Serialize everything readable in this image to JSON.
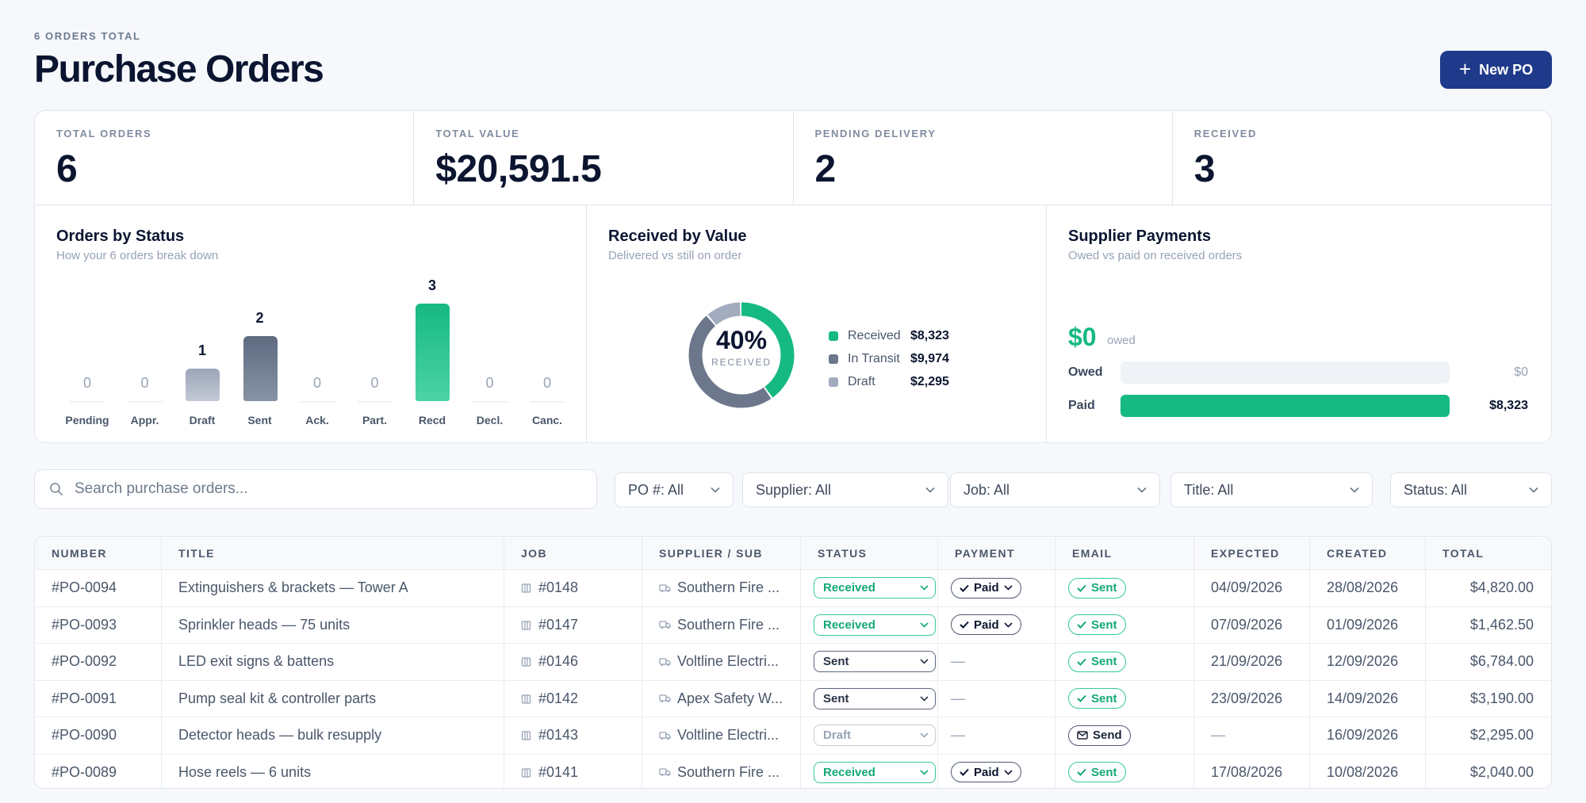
{
  "header": {
    "pre": "6 ORDERS TOTAL",
    "title": "Purchase Orders",
    "new_po": "New PO"
  },
  "stats": [
    {
      "label": "TOTAL ORDERS",
      "value": "6"
    },
    {
      "label": "TOTAL VALUE",
      "value": "$20,591.5"
    },
    {
      "label": "PENDING DELIVERY",
      "value": "2"
    },
    {
      "label": "RECEIVED",
      "value": "3"
    }
  ],
  "status_card": {
    "title": "Orders by Status",
    "subtitle": "How your 6 orders break down"
  },
  "value_card": {
    "title": "Received by Value",
    "subtitle": "Delivered vs still on order",
    "center_pct": "40%",
    "center_label": "RECEIVED",
    "legend": [
      {
        "name": "Received",
        "amount": "$8,323"
      },
      {
        "name": "In Transit",
        "amount": "$9,974"
      },
      {
        "name": "Draft",
        "amount": "$2,295"
      }
    ]
  },
  "payments_card": {
    "title": "Supplier Payments",
    "subtitle": "Owed vs paid on received orders",
    "owed_amount": "$0",
    "owed_label": "owed",
    "owed_row": {
      "label": "Owed",
      "value": "$0",
      "fraction": 0
    },
    "paid_row": {
      "label": "Paid",
      "value": "$8,323",
      "fraction": 1
    }
  },
  "chart_data": [
    {
      "type": "bar",
      "title": "Orders by Status",
      "categories": [
        "Pending",
        "Appr.",
        "Draft",
        "Sent",
        "Ack.",
        "Part.",
        "Recd",
        "Decl.",
        "Canc."
      ],
      "values": [
        0,
        0,
        1,
        2,
        0,
        0,
        3,
        0,
        0
      ],
      "colors": [
        "#cfd6e0",
        "#cfd6e0",
        "#a2acbe",
        "#6c778b",
        "#cfd6e0",
        "#cfd6e0",
        "#16b981",
        "#cfd6e0",
        "#cfd6e0"
      ]
    },
    {
      "type": "pie",
      "title": "Received by Value",
      "categories": [
        "Received",
        "In Transit",
        "Draft"
      ],
      "values": [
        8323,
        9974,
        2295
      ],
      "colors": [
        "#16b981",
        "#6c778b",
        "#a2acbe"
      ]
    }
  ],
  "search": {
    "placeholder": "Search purchase orders..."
  },
  "filters": [
    "PO #: All",
    "Supplier: All",
    "Job: All",
    "Title: All",
    "Status: All"
  ],
  "table": {
    "columns": [
      "NUMBER",
      "TITLE",
      "JOB",
      "SUPPLIER / SUB",
      "STATUS",
      "PAYMENT",
      "EMAIL",
      "EXPECTED",
      "CREATED",
      "TOTAL"
    ],
    "rows": [
      {
        "number": "#PO-0094",
        "title": "Extinguishers & brackets — Tower A",
        "job": "#0148",
        "supplier": "Southern Fire ...",
        "status": "Received",
        "payment": "Paid",
        "email": "Sent",
        "expected": "04/09/2026",
        "created": "28/08/2026",
        "total": "$4,820.00"
      },
      {
        "number": "#PO-0093",
        "title": "Sprinkler heads — 75 units",
        "job": "#0147",
        "supplier": "Southern Fire ...",
        "status": "Received",
        "payment": "Paid",
        "email": "Sent",
        "expected": "07/09/2026",
        "created": "01/09/2026",
        "total": "$1,462.50"
      },
      {
        "number": "#PO-0092",
        "title": "LED exit signs & battens",
        "job": "#0146",
        "supplier": "Voltline Electri...",
        "status": "Sent",
        "payment": "—",
        "email": "Sent",
        "expected": "21/09/2026",
        "created": "12/09/2026",
        "total": "$6,784.00"
      },
      {
        "number": "#PO-0091",
        "title": "Pump seal kit & controller parts",
        "job": "#0142",
        "supplier": "Apex Safety W...",
        "status": "Sent",
        "payment": "—",
        "email": "Sent",
        "expected": "23/09/2026",
        "created": "14/09/2026",
        "total": "$3,190.00"
      },
      {
        "number": "#PO-0090",
        "title": "Detector heads — bulk resupply",
        "job": "#0143",
        "supplier": "Voltline Electri...",
        "status": "Draft",
        "payment": "—",
        "email": "Send",
        "expected": "—",
        "created": "16/09/2026",
        "total": "$2,295.00"
      },
      {
        "number": "#PO-0089",
        "title": "Hose reels — 6 units",
        "job": "#0141",
        "supplier": "Southern Fire ...",
        "status": "Received",
        "payment": "Paid",
        "email": "Sent",
        "expected": "17/08/2026",
        "created": "10/08/2026",
        "total": "$2,040.00"
      }
    ]
  }
}
